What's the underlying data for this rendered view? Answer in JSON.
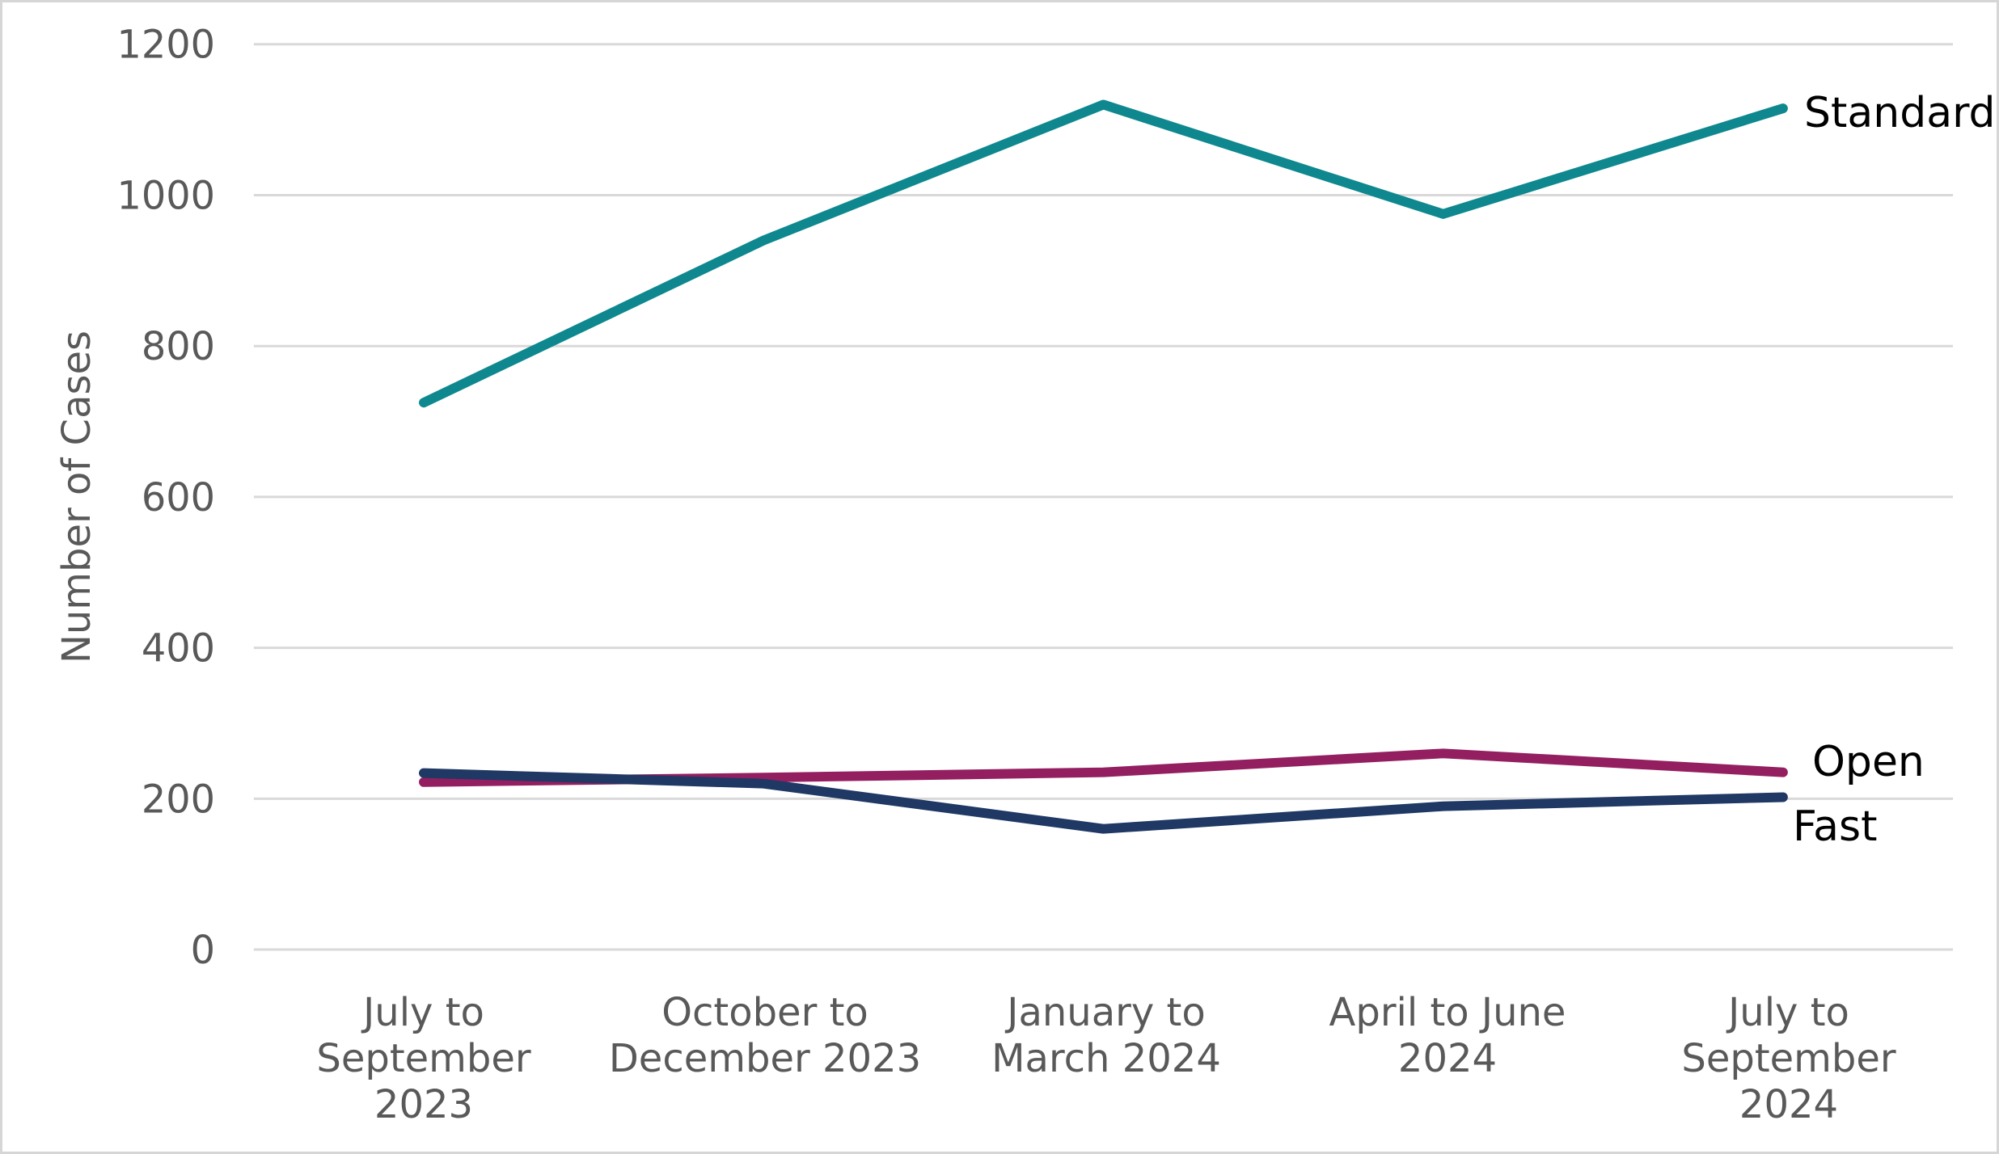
{
  "figure": {
    "background": "#ffffff",
    "border_color": "#d6d6d6"
  },
  "chart_data": {
    "type": "line",
    "title": "",
    "xlabel": "",
    "ylabel": "Number of Cases",
    "ylim": [
      0,
      1200
    ],
    "yticks": [
      "0",
      "200",
      "400",
      "600",
      "800",
      "1000",
      "1200"
    ],
    "grid": "horizontal gridlines only, no vertical axis line",
    "grid_color": "#d9d9d9",
    "tick_label_color": "#595959",
    "series_label_color": "#000000",
    "legend_position": "labels at right end of each line",
    "categories": [
      "July to September 2023",
      "October to December 2023",
      "January to March 2024",
      "April to June 2024",
      "July to September 2024"
    ],
    "category_lines": [
      [
        "July to",
        "September",
        "2023"
      ],
      [
        "October to",
        "December 2023"
      ],
      [
        "January to",
        "March 2024"
      ],
      [
        "April to June",
        "2024"
      ],
      [
        "July to",
        "September",
        "2024"
      ]
    ],
    "series": [
      {
        "name": "Standard",
        "color": "#0e888e",
        "values": [
          725,
          940,
          1120,
          975,
          1115
        ]
      },
      {
        "name": "Open",
        "color": "#931f60",
        "values": [
          222,
          228,
          235,
          260,
          235
        ]
      },
      {
        "name": "Fast",
        "color": "#1f3864",
        "values": [
          234,
          220,
          160,
          190,
          202
        ]
      }
    ]
  }
}
